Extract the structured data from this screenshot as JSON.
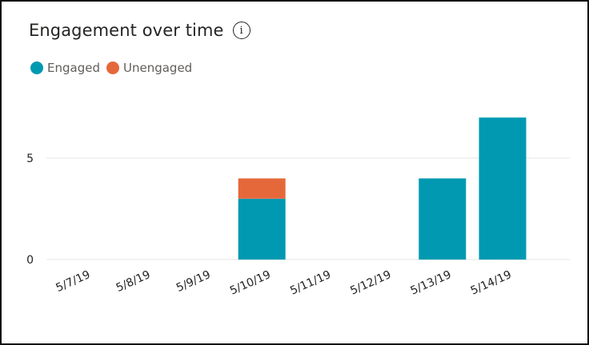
{
  "colors": {
    "engaged": "#0099b1",
    "unengaged": "#e5683b",
    "grid": "#e6e6e6",
    "text": "#252423"
  },
  "icons": {
    "info": "info-icon"
  },
  "chart_data": {
    "type": "bar",
    "stacked": true,
    "title": "Engagement over time",
    "info_glyph": "i",
    "xlabel": "",
    "ylabel": "",
    "ylim": [
      0,
      7
    ],
    "yticks": [
      0,
      5
    ],
    "grid": true,
    "legend_position": "top-left",
    "categories": [
      "5/7/19",
      "5/8/19",
      "5/9/19",
      "5/10/19",
      "5/11/19",
      "5/12/19",
      "5/13/19",
      "5/14/19"
    ],
    "series": [
      {
        "name": "Engaged",
        "values": [
          0,
          0,
          0,
          3,
          0,
          0,
          4,
          7
        ]
      },
      {
        "name": "Unengaged",
        "values": [
          0,
          0,
          0,
          1,
          0,
          0,
          0,
          0
        ]
      }
    ]
  }
}
